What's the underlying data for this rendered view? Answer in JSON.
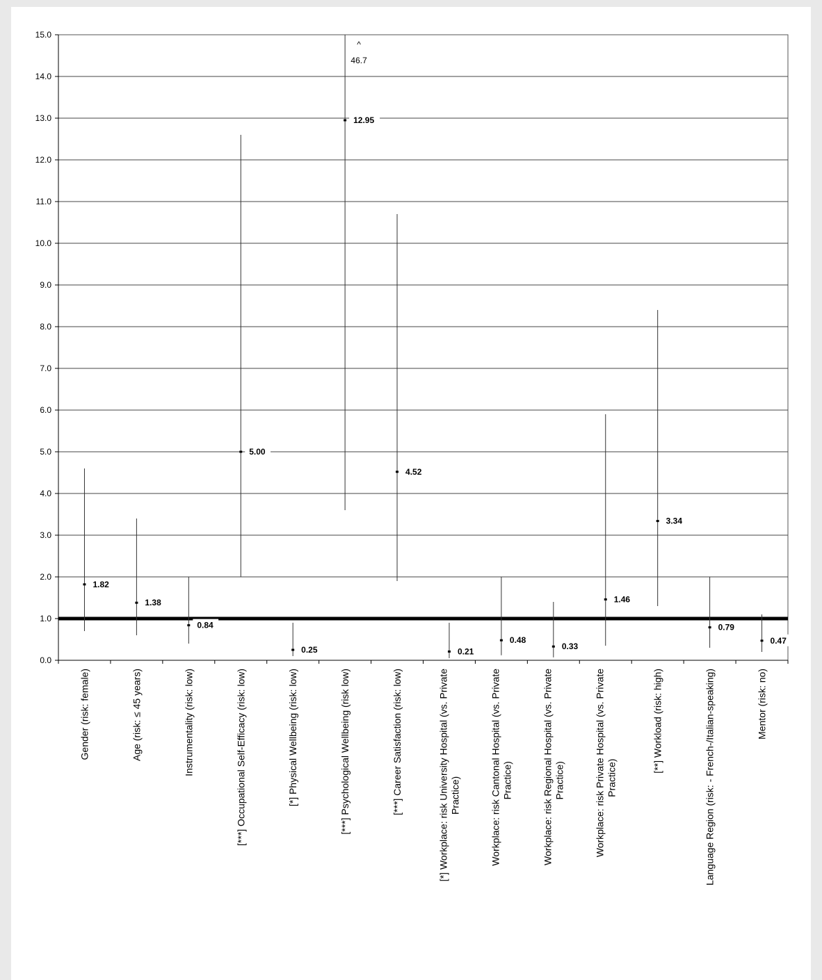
{
  "chart_data": {
    "type": "scatter",
    "title": "",
    "xlabel": "",
    "ylabel": "",
    "ylim": [
      0,
      15
    ],
    "yticks": [
      "0.0",
      "1.0",
      "2.0",
      "3.0",
      "4.0",
      "5.0",
      "6.0",
      "7.0",
      "8.0",
      "9.0",
      "10.0",
      "11.0",
      "12.0",
      "13.0",
      "14.0",
      "15.0"
    ],
    "grid": true,
    "reference_line": 1.0,
    "categories": [
      [
        "Gender (risk: female)"
      ],
      [
        "Age (risk: ≤ 45 years)"
      ],
      [
        "Instrumentality (risk: low)"
      ],
      [
        "[***] Occupational Self-Efficacy (risk: low)"
      ],
      [
        "[*] Physical Wellbeing (risk: low)"
      ],
      [
        "[***] Psychological Wellbeing (risk low)"
      ],
      [
        "[***] Career Satisfaction (risk: low)"
      ],
      [
        "[*] Workplace: risk University Hospital (vs. Private",
        "Practice)"
      ],
      [
        "Workplace: risk Cantonal Hospital (vs. Private",
        "Practice)"
      ],
      [
        "Workplace: risk Regional Hospital (vs. Private",
        "Practice)"
      ],
      [
        "Workplace: risk Private Hospital (vs. Private",
        "Practice)"
      ],
      [
        "[**] Workload (risk: high)"
      ],
      [
        "Language Region (risk: - French-/Italian-speaking)"
      ],
      [
        "Mentor (risk: no)"
      ]
    ],
    "points": [
      {
        "value": 1.82,
        "label": "1.82",
        "low": 0.7,
        "high": 4.6
      },
      {
        "value": 1.38,
        "label": "1.38",
        "low": 0.6,
        "high": 3.4
      },
      {
        "value": 0.84,
        "label": "0.84",
        "low": 0.4,
        "high": 2.0
      },
      {
        "value": 5.0,
        "label": "5.00",
        "low": 2.0,
        "high": 12.6
      },
      {
        "value": 0.25,
        "label": "0.25",
        "low": 0.1,
        "high": 0.9
      },
      {
        "value": 12.95,
        "label": "12.95",
        "low": 3.6,
        "high": 15.0,
        "high_annotation": "46.7",
        "high_marker": "^"
      },
      {
        "value": 4.52,
        "label": "4.52",
        "low": 1.9,
        "high": 10.7
      },
      {
        "value": 0.21,
        "label": "0.21",
        "low": 0.05,
        "high": 0.9
      },
      {
        "value": 0.48,
        "label": "0.48",
        "low": 0.12,
        "high": 2.0
      },
      {
        "value": 0.33,
        "label": "0.33",
        "low": 0.07,
        "high": 1.4
      },
      {
        "value": 1.46,
        "label": "1.46",
        "low": 0.35,
        "high": 5.9
      },
      {
        "value": 3.34,
        "label": "3.34",
        "low": 1.3,
        "high": 8.4
      },
      {
        "value": 0.79,
        "label": "0.79",
        "low": 0.3,
        "high": 2.0
      },
      {
        "value": 0.47,
        "label": "0.47",
        "low": 0.2,
        "high": 1.1
      }
    ]
  }
}
